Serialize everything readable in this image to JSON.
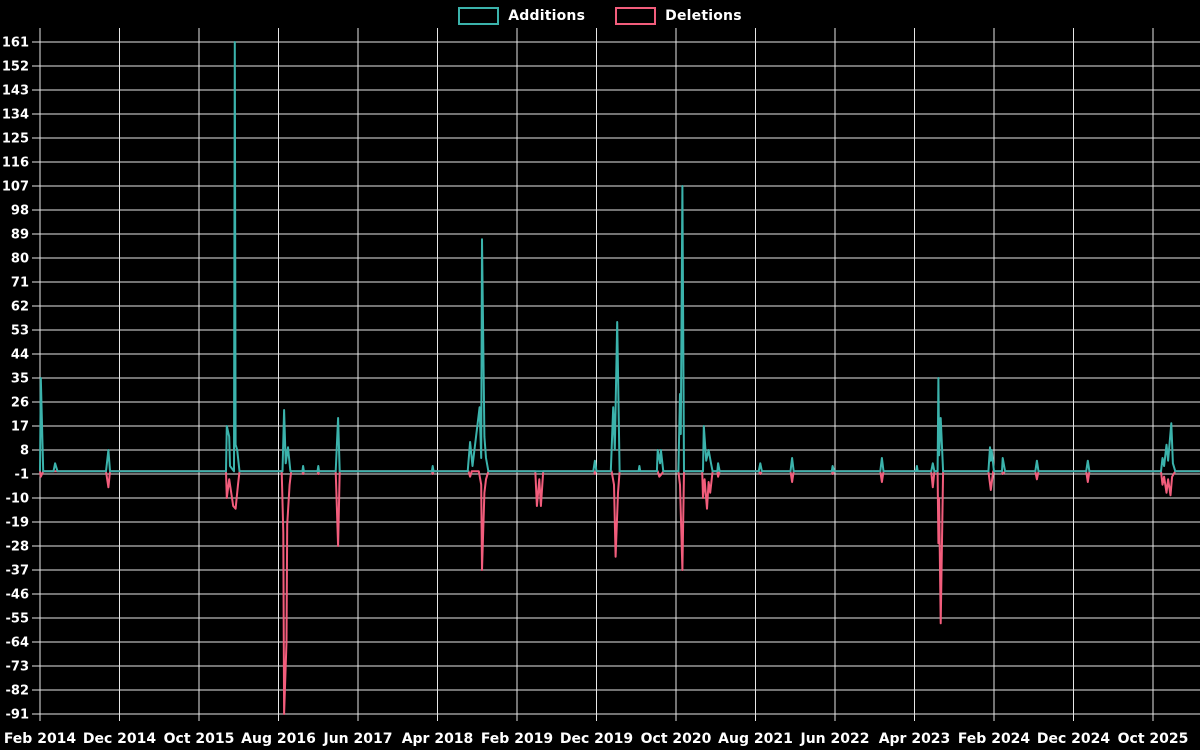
{
  "legend": {
    "items": [
      {
        "label": "Additions",
        "color": "#3bb3ac"
      },
      {
        "label": "Deletions",
        "color": "#f25d7c"
      }
    ]
  },
  "colors": {
    "background": "#000000",
    "grid": "#e6e6e6",
    "text": "#ffffff",
    "additions": "#3bb3ac",
    "deletions": "#f25d7c"
  },
  "chart_data": {
    "type": "line",
    "title": "",
    "xlabel": "",
    "ylabel": "",
    "grid": true,
    "legend_position": "top-center",
    "x_axis": {
      "unit": "months since Feb 2014",
      "tick_labels": [
        "Feb 2014",
        "Dec 2014",
        "Oct 2015",
        "Aug 2016",
        "Jun 2017",
        "Apr 2018",
        "Feb 2019",
        "Dec 2019",
        "Oct 2020",
        "Aug 2021",
        "Jun 2022",
        "Apr 2023",
        "Feb 2024",
        "Dec 2024",
        "Oct 2025"
      ],
      "months_per_tick": 10,
      "t_min": 0,
      "t_max": 145.9
    },
    "y_axis": {
      "max": 161,
      "min": -91,
      "step": 9,
      "ticks": [
        161,
        152,
        143,
        134,
        125,
        116,
        107,
        98,
        89,
        80,
        71,
        62,
        53,
        44,
        35,
        26,
        17,
        8,
        -1,
        -10,
        -19,
        -28,
        -37,
        -46,
        -55,
        -64,
        -73,
        -82,
        -91
      ]
    },
    "series": [
      {
        "name": "Additions",
        "color": "#3bb3ac",
        "points": [
          [
            0,
            0
          ],
          [
            0.1,
            35
          ],
          [
            0.4,
            0
          ],
          [
            1.7,
            0
          ],
          [
            1.9,
            3
          ],
          [
            2.2,
            0
          ],
          [
            8.3,
            0
          ],
          [
            8.6,
            8
          ],
          [
            8.8,
            0
          ],
          [
            23.4,
            0
          ],
          [
            23.5,
            17
          ],
          [
            23.8,
            13
          ],
          [
            23.9,
            2
          ],
          [
            24.4,
            0
          ],
          [
            24.5,
            161
          ],
          [
            24.6,
            10
          ],
          [
            24.8,
            8
          ],
          [
            25.1,
            0
          ],
          [
            30.5,
            0
          ],
          [
            30.7,
            23
          ],
          [
            30.9,
            3
          ],
          [
            31.2,
            9
          ],
          [
            31.5,
            0
          ],
          [
            33.0,
            0
          ],
          [
            33.1,
            2
          ],
          [
            33.2,
            0
          ],
          [
            34.9,
            0
          ],
          [
            35.0,
            2
          ],
          [
            35.1,
            0
          ],
          [
            37.2,
            0
          ],
          [
            37.5,
            20
          ],
          [
            37.7,
            0
          ],
          [
            49.3,
            0
          ],
          [
            49.4,
            2
          ],
          [
            49.5,
            0
          ],
          [
            53.8,
            0
          ],
          [
            54.1,
            11
          ],
          [
            54.4,
            2
          ],
          [
            55.3,
            24
          ],
          [
            55.5,
            5
          ],
          [
            55.6,
            87
          ],
          [
            55.9,
            13
          ],
          [
            56.1,
            5
          ],
          [
            56.4,
            0
          ],
          [
            69.6,
            0
          ],
          [
            69.8,
            4
          ],
          [
            70.0,
            0
          ],
          [
            71.8,
            0
          ],
          [
            72.0,
            16
          ],
          [
            72.1,
            24
          ],
          [
            72.3,
            8
          ],
          [
            72.6,
            56
          ],
          [
            72.9,
            0
          ],
          [
            75.3,
            0
          ],
          [
            75.4,
            2
          ],
          [
            75.5,
            0
          ],
          [
            77.6,
            0
          ],
          [
            77.7,
            8
          ],
          [
            78.0,
            3
          ],
          [
            78.1,
            8
          ],
          [
            78.4,
            0
          ],
          [
            80.3,
            0
          ],
          [
            80.5,
            29
          ],
          [
            80.6,
            14
          ],
          [
            80.8,
            107
          ],
          [
            81.0,
            0
          ],
          [
            83.4,
            0
          ],
          [
            83.5,
            17
          ],
          [
            83.8,
            4
          ],
          [
            84.1,
            8
          ],
          [
            84.4,
            3
          ],
          [
            84.6,
            0
          ],
          [
            85.2,
            0
          ],
          [
            85.3,
            3
          ],
          [
            85.5,
            0
          ],
          [
            90.4,
            0
          ],
          [
            90.6,
            3
          ],
          [
            90.8,
            0
          ],
          [
            94.4,
            0
          ],
          [
            94.6,
            5
          ],
          [
            94.8,
            0
          ],
          [
            99.6,
            0
          ],
          [
            99.7,
            2
          ],
          [
            99.9,
            0
          ],
          [
            105.7,
            0
          ],
          [
            105.9,
            5
          ],
          [
            106.1,
            0
          ],
          [
            110.2,
            0
          ],
          [
            110.3,
            2
          ],
          [
            110.4,
            0
          ],
          [
            112.1,
            0
          ],
          [
            112.3,
            3
          ],
          [
            112.5,
            0
          ],
          [
            112.9,
            0
          ],
          [
            113.0,
            35
          ],
          [
            113.1,
            6
          ],
          [
            113.3,
            20
          ],
          [
            113.6,
            0
          ],
          [
            119.3,
            0
          ],
          [
            119.5,
            9
          ],
          [
            119.6,
            4
          ],
          [
            119.7,
            8
          ],
          [
            120.0,
            0
          ],
          [
            121.0,
            0
          ],
          [
            121.1,
            5
          ],
          [
            121.4,
            0
          ],
          [
            125.2,
            0
          ],
          [
            125.4,
            4
          ],
          [
            125.6,
            0
          ],
          [
            131.6,
            0
          ],
          [
            131.8,
            4
          ],
          [
            132.0,
            0
          ],
          [
            141.0,
            0
          ],
          [
            141.2,
            5
          ],
          [
            141.4,
            2
          ],
          [
            141.7,
            10
          ],
          [
            141.9,
            4
          ],
          [
            142.3,
            18
          ],
          [
            142.5,
            3
          ],
          [
            142.8,
            0
          ],
          [
            145.9,
            0
          ]
        ]
      },
      {
        "name": "Deletions",
        "color": "#f25d7c",
        "points": [
          [
            0,
            0
          ],
          [
            0.1,
            -2
          ],
          [
            0.4,
            0
          ],
          [
            8.3,
            0
          ],
          [
            8.6,
            -6
          ],
          [
            8.8,
            0
          ],
          [
            23.4,
            0
          ],
          [
            23.5,
            -10
          ],
          [
            23.8,
            -3
          ],
          [
            24.3,
            -13
          ],
          [
            24.6,
            -14
          ],
          [
            24.9,
            -5
          ],
          [
            25.1,
            0
          ],
          [
            30.4,
            0
          ],
          [
            30.6,
            -23
          ],
          [
            30.7,
            -91
          ],
          [
            31.0,
            -64
          ],
          [
            31.1,
            -20
          ],
          [
            31.4,
            -5
          ],
          [
            31.6,
            0
          ],
          [
            33.0,
            0
          ],
          [
            33.1,
            -1
          ],
          [
            33.2,
            0
          ],
          [
            34.9,
            0
          ],
          [
            35.0,
            -1
          ],
          [
            35.1,
            0
          ],
          [
            37.2,
            0
          ],
          [
            37.5,
            -28
          ],
          [
            37.7,
            0
          ],
          [
            49.3,
            0
          ],
          [
            49.4,
            -1
          ],
          [
            49.5,
            0
          ],
          [
            53.9,
            0
          ],
          [
            54.1,
            -2
          ],
          [
            54.3,
            0
          ],
          [
            55.2,
            0
          ],
          [
            55.5,
            -5
          ],
          [
            55.6,
            -37
          ],
          [
            55.9,
            -8
          ],
          [
            56.1,
            -3
          ],
          [
            56.4,
            0
          ],
          [
            62.3,
            0
          ],
          [
            62.5,
            -13
          ],
          [
            62.8,
            -3
          ],
          [
            63.0,
            -13
          ],
          [
            63.3,
            0
          ],
          [
            69.7,
            0
          ],
          [
            69.8,
            -1
          ],
          [
            69.9,
            0
          ],
          [
            71.9,
            0
          ],
          [
            72.2,
            -5
          ],
          [
            72.4,
            -32
          ],
          [
            72.7,
            -8
          ],
          [
            72.9,
            0
          ],
          [
            77.7,
            0
          ],
          [
            77.9,
            -2
          ],
          [
            78.2,
            -1
          ],
          [
            78.4,
            0
          ],
          [
            80.3,
            0
          ],
          [
            80.5,
            -5
          ],
          [
            80.8,
            -37
          ],
          [
            81.0,
            0
          ],
          [
            83.3,
            0
          ],
          [
            83.4,
            -10
          ],
          [
            83.6,
            -3
          ],
          [
            83.9,
            -14
          ],
          [
            84.1,
            -4
          ],
          [
            84.3,
            -8
          ],
          [
            84.6,
            0
          ],
          [
            85.2,
            0
          ],
          [
            85.3,
            -2
          ],
          [
            85.5,
            0
          ],
          [
            90.4,
            0
          ],
          [
            90.6,
            -1
          ],
          [
            90.8,
            0
          ],
          [
            94.4,
            0
          ],
          [
            94.6,
            -4
          ],
          [
            94.8,
            0
          ],
          [
            99.6,
            0
          ],
          [
            99.7,
            -1
          ],
          [
            99.9,
            0
          ],
          [
            105.7,
            0
          ],
          [
            105.9,
            -4
          ],
          [
            106.1,
            0
          ],
          [
            112.1,
            0
          ],
          [
            112.3,
            -6
          ],
          [
            112.5,
            0
          ],
          [
            112.9,
            0
          ],
          [
            113.0,
            -27
          ],
          [
            113.1,
            -10
          ],
          [
            113.3,
            -57
          ],
          [
            113.6,
            0
          ],
          [
            119.3,
            0
          ],
          [
            119.6,
            -7
          ],
          [
            119.9,
            0
          ],
          [
            121.0,
            0
          ],
          [
            121.1,
            -1
          ],
          [
            121.4,
            0
          ],
          [
            125.2,
            0
          ],
          [
            125.4,
            -3
          ],
          [
            125.6,
            0
          ],
          [
            131.6,
            0
          ],
          [
            131.8,
            -4
          ],
          [
            132.0,
            0
          ],
          [
            141.0,
            0
          ],
          [
            141.2,
            -5
          ],
          [
            141.4,
            -2
          ],
          [
            141.7,
            -8
          ],
          [
            141.9,
            -3
          ],
          [
            142.2,
            -9
          ],
          [
            142.4,
            -2
          ],
          [
            142.8,
            0
          ],
          [
            145.9,
            0
          ]
        ]
      }
    ]
  }
}
